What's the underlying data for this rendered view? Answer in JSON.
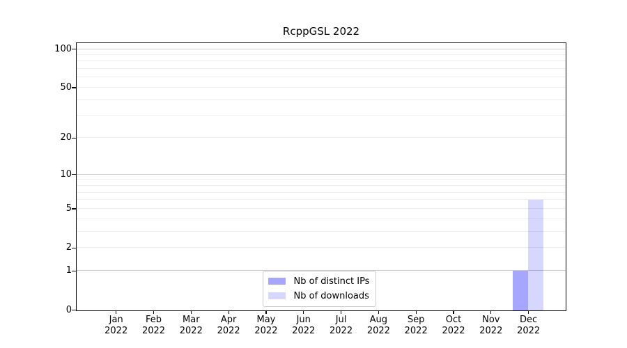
{
  "figure": {
    "background": "#ffffff"
  },
  "chart_data": {
    "type": "bar",
    "title": "RcppGSL 2022",
    "x_year": "2022",
    "categories": [
      "Jan",
      "Feb",
      "Mar",
      "Apr",
      "May",
      "Jun",
      "Jul",
      "Aug",
      "Sep",
      "Oct",
      "Nov",
      "Dec"
    ],
    "series": [
      {
        "name": "Nb of distinct IPs",
        "base_color": "#0000ff",
        "alpha": 0.35,
        "rendered_color": "#a6a6f7",
        "values": [
          0,
          0,
          0,
          0,
          0,
          0,
          0,
          0,
          0,
          0,
          0,
          1
        ]
      },
      {
        "name": "Nb of downloads",
        "base_color": "#0000ff",
        "alpha": 0.16,
        "rendered_color": "#dbdbfa",
        "values": [
          0,
          0,
          0,
          0,
          0,
          0,
          0,
          0,
          0,
          0,
          0,
          6
        ]
      }
    ],
    "y_scale": "log1p",
    "y_ticks": [
      0,
      1,
      2,
      5,
      10,
      20,
      50,
      100
    ],
    "y_major_gridlines": [
      1,
      10,
      100
    ],
    "y_minor_gridlines": [
      2,
      3,
      4,
      5,
      6,
      7,
      8,
      9,
      20,
      30,
      40,
      50,
      60,
      70,
      80,
      90
    ],
    "ylim": [
      0,
      112
    ],
    "grid": true,
    "legend_position": "lower center",
    "axis_color": "#000000",
    "major_grid_color": "#c9c9c9",
    "minor_grid_color": "#ededed"
  }
}
